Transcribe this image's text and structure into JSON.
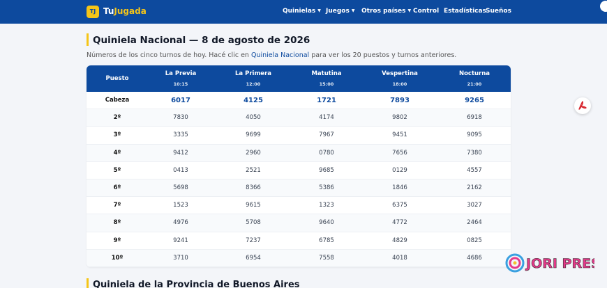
{
  "header": {
    "logo_mark": "TJ",
    "brand_part1": "Tu",
    "brand_part2": "Jugada",
    "nav": [
      {
        "label": "Quinielas",
        "dropdown": true
      },
      {
        "label": "Juegos",
        "dropdown": true
      },
      {
        "label": "Otros países",
        "dropdown": true
      },
      {
        "label": "Control",
        "dropdown": false
      },
      {
        "label": "Estadísticas",
        "dropdown": false
      },
      {
        "label": "Sueños",
        "dropdown": false
      }
    ]
  },
  "main": {
    "title": "Quiniela Nacional — 8 de agosto de 2026",
    "intro_before": "Números de los cinco turnos de hoy. Hacé clic en ",
    "intro_link": "Quiniela Nacional",
    "intro_after": " para ver los 20 puestos y turnos anteriores.",
    "table": {
      "header_puesto": "Puesto",
      "turns": [
        {
          "name": "La Previa",
          "time": "10:15"
        },
        {
          "name": "La Primera",
          "time": "12:00"
        },
        {
          "name": "Matutina",
          "time": "15:00"
        },
        {
          "name": "Vespertina",
          "time": "18:00"
        },
        {
          "name": "Nocturna",
          "time": "21:00"
        }
      ],
      "rows": [
        {
          "pos": "Cabeza",
          "values": [
            "6017",
            "4125",
            "1721",
            "7893",
            "9265"
          ]
        },
        {
          "pos": "2º",
          "values": [
            "7830",
            "4050",
            "4174",
            "9802",
            "6918"
          ]
        },
        {
          "pos": "3º",
          "values": [
            "3335",
            "9699",
            "7967",
            "9451",
            "9095"
          ]
        },
        {
          "pos": "4º",
          "values": [
            "9412",
            "2960",
            "0780",
            "7656",
            "7380"
          ]
        },
        {
          "pos": "5º",
          "values": [
            "0413",
            "2521",
            "9685",
            "0129",
            "4557"
          ]
        },
        {
          "pos": "6º",
          "values": [
            "5698",
            "8366",
            "5386",
            "1846",
            "2162"
          ]
        },
        {
          "pos": "7º",
          "values": [
            "1523",
            "9615",
            "1323",
            "6375",
            "3027"
          ]
        },
        {
          "pos": "8º",
          "values": [
            "4976",
            "5708",
            "9640",
            "4772",
            "2464"
          ]
        },
        {
          "pos": "9º",
          "values": [
            "9241",
            "7237",
            "6785",
            "4829",
            "0825"
          ]
        },
        {
          "pos": "10º",
          "values": [
            "3710",
            "6954",
            "7558",
            "4018",
            "4686"
          ]
        }
      ]
    },
    "next_title": "Quiniela de la Provincia de Buenos Aires"
  },
  "watermark_text": "JORI PRESS",
  "colors": {
    "primary": "#0d4a9e",
    "accent": "#f5c518",
    "pdf_red": "#d7262e"
  },
  "icons": {
    "pdf": "pdf-icon",
    "dropdown": "caret-down-icon"
  }
}
